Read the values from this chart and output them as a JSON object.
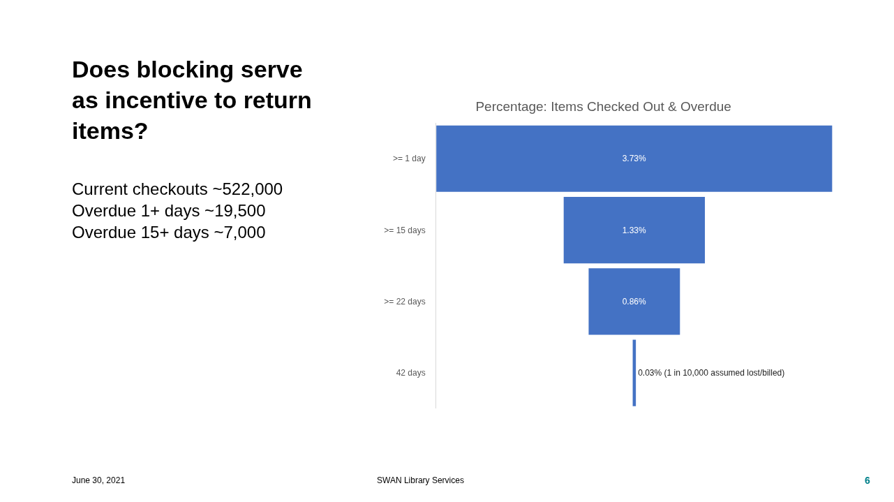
{
  "chart_data": {
    "type": "other",
    "title": "Percentage: Items Checked Out & Overdue",
    "categories": [
      ">= 1 day",
      ">= 15 days",
      ">= 22 days",
      "42 days"
    ],
    "values": [
      3.73,
      1.33,
      0.86,
      0.03
    ],
    "color": "#4472c4",
    "value_labels": [
      "3.73%",
      "1.33%",
      "0.86%",
      "0.03% (1 in 10,000 assumed lost/billed)"
    ],
    "annotations": [
      "Does blocking serve\nas incentive to return\nitems?",
      "Current checkouts ~522,000\nOverdue 1+ days ~19,500\nOverdue 15+ days ~7,000",
      "June 30, 2021",
      "SWAN Library Services",
      "6"
    ]
  }
}
